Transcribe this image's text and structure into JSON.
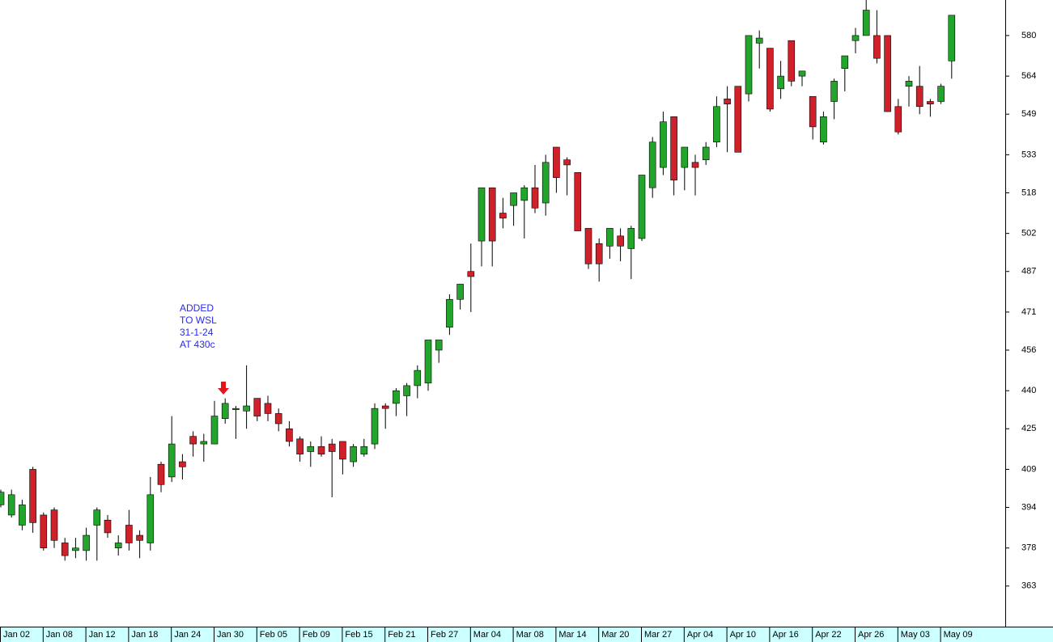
{
  "chart_data": {
    "type": "candlestick",
    "categories": [
      "Jan 02",
      null,
      null,
      null,
      "Jan 08",
      null,
      null,
      null,
      "Jan 12",
      null,
      null,
      null,
      "Jan 18",
      null,
      null,
      null,
      "Jan 24",
      null,
      null,
      null,
      "Jan 30",
      null,
      null,
      null,
      "Feb 05",
      null,
      null,
      null,
      "Feb 09",
      null,
      null,
      null,
      "Feb 15",
      null,
      null,
      null,
      "Feb 21",
      null,
      null,
      null,
      "Feb 27",
      null,
      null,
      null,
      "Mar 04",
      null,
      null,
      null,
      "Mar 08",
      null,
      null,
      null,
      "Mar 14",
      null,
      null,
      null,
      "Mar 20",
      null,
      null,
      null,
      "Mar 27",
      null,
      null,
      null,
      "Apr 04",
      null,
      null,
      null,
      "Apr 10",
      null,
      null,
      null,
      "Apr 16",
      null,
      null,
      null,
      "Apr 22",
      null,
      null,
      null,
      "Apr 26",
      null,
      null,
      null,
      "May 03",
      null,
      null,
      null,
      "May 09",
      null
    ],
    "open": [
      395,
      391,
      387,
      409,
      391,
      393,
      380,
      377,
      377,
      387,
      389,
      378,
      387,
      383,
      380,
      411,
      406,
      412,
      422,
      419,
      419,
      429,
      433,
      432,
      437,
      435,
      431,
      425,
      421,
      416,
      418,
      419,
      420,
      412,
      415,
      419,
      434,
      435,
      438,
      442,
      443,
      456,
      465,
      476,
      487,
      499,
      520,
      510,
      513,
      515,
      520,
      514,
      536,
      531,
      526,
      504,
      498,
      497,
      501,
      496,
      500,
      520,
      528,
      548,
      528,
      530,
      531,
      538,
      555,
      560,
      557,
      577,
      575,
      559,
      578,
      564,
      556,
      538,
      554,
      567,
      578,
      580,
      580,
      580,
      552,
      560,
      560,
      554,
      554,
      570
    ],
    "high": [
      401,
      401,
      397,
      410,
      392,
      394,
      382,
      382,
      386,
      394,
      391,
      383,
      393,
      385,
      406,
      412,
      430,
      415,
      424,
      423,
      436,
      437,
      434,
      450,
      437,
      438,
      433,
      428,
      422,
      420,
      422,
      421,
      420,
      419,
      421,
      435,
      435,
      441,
      443,
      450,
      460,
      460,
      478,
      482,
      498,
      520,
      520,
      516,
      518,
      521,
      529,
      533,
      536,
      532,
      526,
      504,
      500,
      504,
      504,
      505,
      525,
      540,
      550,
      548,
      536,
      533,
      538,
      556,
      560,
      560,
      580,
      582,
      575,
      570,
      578,
      566,
      556,
      550,
      563,
      572,
      583,
      594,
      590,
      580,
      555,
      564,
      568,
      555,
      561,
      588
    ],
    "low": [
      394,
      390,
      385,
      384,
      377,
      378,
      373,
      374,
      373,
      373,
      382,
      375,
      377,
      374,
      377,
      400,
      404,
      405,
      414,
      412,
      419,
      427,
      421,
      425,
      428,
      428,
      424,
      418,
      412,
      410,
      414,
      398,
      407,
      410,
      414,
      417,
      425,
      430,
      430,
      437,
      440,
      451,
      462,
      472,
      471,
      489,
      489,
      504,
      505,
      500,
      510,
      509,
      518,
      517,
      503,
      488,
      483,
      492,
      491,
      484,
      499,
      516,
      525,
      517,
      519,
      517,
      529,
      536,
      534,
      534,
      554,
      567,
      550,
      555,
      560,
      560,
      539,
      537,
      547,
      558,
      573,
      580,
      569,
      550,
      541,
      552,
      549,
      548,
      553,
      563
    ],
    "close": [
      400,
      399,
      395,
      388,
      378,
      381,
      375,
      378,
      383,
      393,
      384,
      380,
      380,
      381,
      399,
      403,
      419,
      410,
      419,
      420,
      430,
      435,
      433,
      434,
      430,
      431,
      427,
      420,
      415,
      418,
      415,
      416,
      413,
      418,
      418,
      433,
      433,
      440,
      442,
      448,
      460,
      460,
      476,
      482,
      485,
      520,
      499,
      508,
      518,
      520,
      512,
      530,
      524,
      529,
      503,
      490,
      490,
      504,
      497,
      504,
      525,
      538,
      546,
      523,
      536,
      528,
      536,
      552,
      553,
      534,
      580,
      579,
      551,
      564,
      562,
      566,
      544,
      548,
      562,
      572,
      580,
      590,
      571,
      550,
      542,
      562,
      552,
      553,
      560,
      588
    ],
    "up_color": "#22a52b",
    "down_color": "#d0202a",
    "ylim": [
      347,
      594
    ],
    "yticks": [
      363,
      378,
      394,
      409,
      425,
      440,
      456,
      471,
      487,
      502,
      518,
      533,
      549,
      564,
      580
    ],
    "annotation": [
      "ADDED",
      "TO WSL",
      "31-1-24",
      "AT 430c"
    ]
  }
}
